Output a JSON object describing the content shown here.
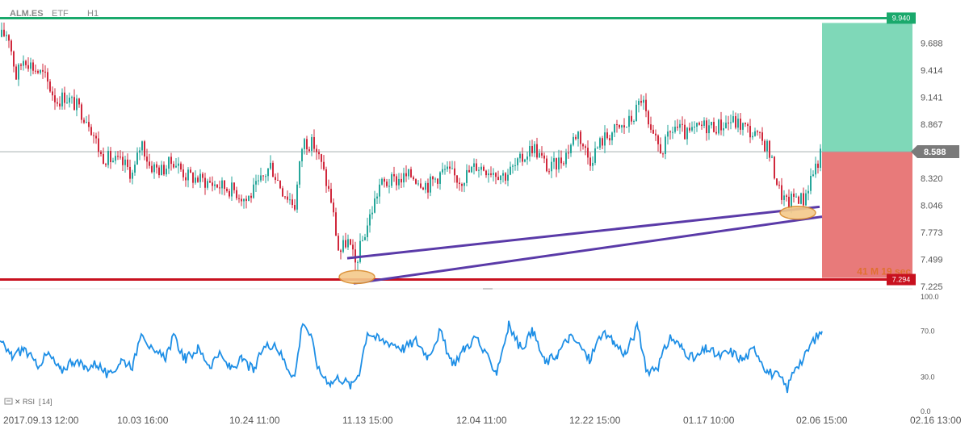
{
  "header": {
    "symbol": "ALM.ES",
    "exchange": "ETF",
    "timeframe": "H1"
  },
  "colors": {
    "bull": "#26a69a",
    "bear": "#d0283c",
    "take_profit_zone": "#7fd8b8",
    "stop_loss_zone": "#e87a7a",
    "tp_line": "#1aa96c",
    "sl_line": "#c8101e",
    "trendline": "#5a3aa8",
    "ellipse_fill": "#f4c98a",
    "ellipse_stroke": "#d98a2a",
    "rsi_line": "#1e8fe6",
    "current_price_badge": "#7a7a7a"
  },
  "chart_data": [
    {
      "type": "candlestick",
      "ylim": [
        7.225,
        9.96
      ],
      "y_ticks": [
        "9.688",
        "9.414",
        "9.141",
        "8.867",
        "8.588",
        "8.320",
        "8.046",
        "7.773",
        "7.499",
        "7.225"
      ],
      "x_ticks": [
        "2017.09.13  12:00",
        "10.03  16:00",
        "10.24  11:00",
        "11.13  15:00",
        "12.04  11:00",
        "12.22  15:00",
        "01.17  10:00",
        "02.06  15:00",
        "02.16  13:00"
      ],
      "close_path": [
        [
          0,
          9.75
        ],
        [
          10,
          9.8
        ],
        [
          20,
          9.35
        ],
        [
          30,
          9.55
        ],
        [
          40,
          9.45
        ],
        [
          55,
          9.35
        ],
        [
          70,
          9.1
        ],
        [
          80,
          9.15
        ],
        [
          95,
          9.05
        ],
        [
          110,
          8.9
        ],
        [
          125,
          8.55
        ],
        [
          140,
          8.5
        ],
        [
          155,
          8.45
        ],
        [
          165,
          8.35
        ],
        [
          175,
          8.7
        ],
        [
          185,
          8.45
        ],
        [
          200,
          8.4
        ],
        [
          215,
          8.5
        ],
        [
          230,
          8.35
        ],
        [
          250,
          8.3
        ],
        [
          270,
          8.25
        ],
        [
          290,
          8.2
        ],
        [
          305,
          8.1
        ],
        [
          320,
          8.25
        ],
        [
          335,
          8.45
        ],
        [
          350,
          8.2
        ],
        [
          365,
          8.05
        ],
        [
          375,
          8.7
        ],
        [
          390,
          8.65
        ],
        [
          400,
          8.4
        ],
        [
          410,
          8.1
        ],
        [
          420,
          7.55
        ],
        [
          430,
          7.7
        ],
        [
          440,
          7.45
        ],
        [
          455,
          7.85
        ],
        [
          470,
          8.25
        ],
        [
          490,
          8.3
        ],
        [
          510,
          8.35
        ],
        [
          530,
          8.25
        ],
        [
          550,
          8.4
        ],
        [
          570,
          8.3
        ],
        [
          590,
          8.45
        ],
        [
          610,
          8.4
        ],
        [
          625,
          8.35
        ],
        [
          640,
          8.45
        ],
        [
          660,
          8.65
        ],
        [
          680,
          8.4
        ],
        [
          700,
          8.55
        ],
        [
          715,
          8.8
        ],
        [
          730,
          8.5
        ],
        [
          745,
          8.7
        ],
        [
          760,
          8.8
        ],
        [
          775,
          8.85
        ],
        [
          785,
          8.95
        ],
        [
          795,
          9.15
        ],
        [
          805,
          8.75
        ],
        [
          820,
          8.6
        ],
        [
          835,
          8.85
        ],
        [
          850,
          8.75
        ],
        [
          870,
          8.85
        ],
        [
          890,
          8.85
        ],
        [
          905,
          8.9
        ],
        [
          920,
          8.85
        ],
        [
          935,
          8.75
        ],
        [
          950,
          8.65
        ],
        [
          965,
          8.2
        ],
        [
          975,
          8.05
        ],
        [
          985,
          8.15
        ],
        [
          995,
          8.1
        ],
        [
          1005,
          8.35
        ],
        [
          1018,
          8.588
        ]
      ],
      "current_price": "8.588",
      "take_profit": "9.940",
      "stop_loss": "7.294",
      "candle_timer": "41 M 19 sec",
      "trendline_upper": [
        [
          430,
          7.51
        ],
        [
          1015,
          8.03
        ]
      ],
      "trendline_lower": [
        [
          438,
          7.255
        ],
        [
          1018,
          7.93
        ]
      ],
      "highlights": [
        [
          442,
          7.32
        ],
        [
          988,
          7.97
        ]
      ]
    },
    {
      "type": "line",
      "indicator": "RSI",
      "period": "14",
      "ylim": [
        0,
        100
      ],
      "y_ticks": [
        "100.0",
        "70.0",
        "30.0",
        "0.0"
      ],
      "series": [
        {
          "name": "RSI [14]",
          "x": [
            0,
            15,
            30,
            45,
            60,
            75,
            90,
            105,
            120,
            135,
            150,
            165,
            175,
            190,
            205,
            215,
            230,
            245,
            260,
            270,
            285,
            300,
            315,
            325,
            340,
            355,
            365,
            375,
            385,
            395,
            410,
            420,
            435,
            445,
            455,
            470,
            485,
            500,
            515,
            530,
            545,
            560,
            575,
            590,
            600,
            615,
            630,
            645,
            660,
            675,
            690,
            705,
            715,
            730,
            745,
            760,
            775,
            790,
            800,
            815,
            830,
            845,
            860,
            875,
            890,
            905,
            920,
            935,
            950,
            965,
            975,
            985,
            995,
            1005,
            1018
          ],
          "values": [
            60,
            48,
            55,
            40,
            50,
            35,
            45,
            38,
            42,
            30,
            45,
            40,
            72,
            50,
            48,
            65,
            45,
            55,
            40,
            50,
            38,
            45,
            35,
            55,
            60,
            40,
            30,
            80,
            65,
            35,
            25,
            30,
            22,
            35,
            70,
            62,
            60,
            55,
            62,
            48,
            70,
            40,
            55,
            65,
            50,
            35,
            75,
            55,
            70,
            42,
            50,
            65,
            60,
            45,
            68,
            60,
            50,
            75,
            35,
            40,
            65,
            55,
            45,
            55,
            48,
            52,
            45,
            55,
            35,
            30,
            20,
            40,
            45,
            60,
            70
          ]
        }
      ]
    }
  ]
}
